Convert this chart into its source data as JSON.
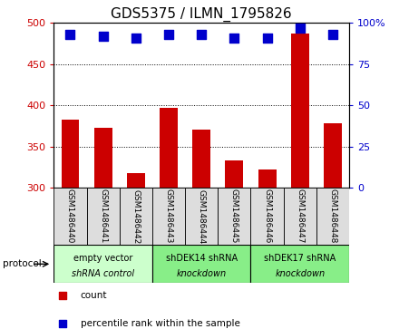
{
  "title": "GDS5375 / ILMN_1795826",
  "samples": [
    "GSM1486440",
    "GSM1486441",
    "GSM1486442",
    "GSM1486443",
    "GSM1486444",
    "GSM1486445",
    "GSM1486446",
    "GSM1486447",
    "GSM1486448"
  ],
  "counts": [
    383,
    373,
    317,
    397,
    370,
    333,
    322,
    487,
    378
  ],
  "percentiles": [
    93,
    92,
    91,
    93,
    93,
    91,
    91,
    97,
    93
  ],
  "ylim_left": [
    300,
    500
  ],
  "ylim_right": [
    0,
    100
  ],
  "yticks_left": [
    300,
    350,
    400,
    450,
    500
  ],
  "yticks_right": [
    0,
    25,
    50,
    75,
    100
  ],
  "yticklabels_right": [
    "0",
    "25",
    "50",
    "75",
    "100%"
  ],
  "bar_color": "#cc0000",
  "dot_color": "#0000cc",
  "bg_color": "#ffffff",
  "cell_color": "#dddddd",
  "tick_label_color_left": "#cc0000",
  "tick_label_color_right": "#0000cc",
  "protocol_groups": [
    {
      "label": "empty vector\nshRNA control",
      "start": 0,
      "end": 3,
      "color": "#ccffcc"
    },
    {
      "label": "shDEK14 shRNA\nknockdown",
      "start": 3,
      "end": 6,
      "color": "#88ee88"
    },
    {
      "label": "shDEK17 shRNA\nknockdown",
      "start": 6,
      "end": 9,
      "color": "#88ee88"
    }
  ],
  "legend_items": [
    {
      "label": "count",
      "color": "#cc0000",
      "marker": "s"
    },
    {
      "label": "percentile rank within the sample",
      "color": "#0000cc",
      "marker": "s"
    }
  ],
  "protocol_label": "protocol",
  "bar_width": 0.55,
  "dot_size": 50,
  "title_fontsize": 11,
  "tick_fontsize": 8,
  "sample_fontsize": 6.5,
  "group_fontsize": 7,
  "legend_fontsize": 7.5
}
